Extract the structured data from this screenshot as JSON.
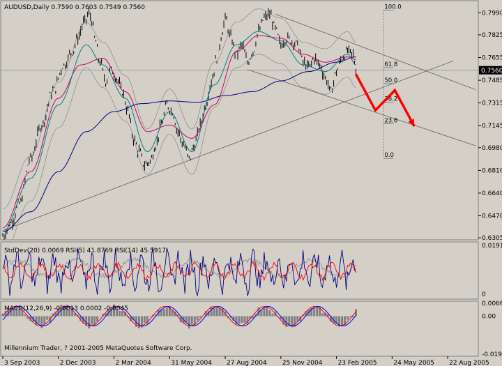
{
  "chart_data": {
    "type": "line",
    "symbol_header": "AUDUSD,Daily  0.7590 0.7603 0.7549 0.7560",
    "current_price": "0.7560",
    "price_axis": {
      "ticks": [
        0.799,
        0.7825,
        0.7655,
        0.7485,
        0.7315,
        0.7145,
        0.698,
        0.681,
        0.664,
        0.647,
        0.6305
      ],
      "tick_labels": [
        "0.7990",
        "0.7825",
        "0.7655",
        "0.7485",
        "0.7315",
        "0.7145",
        "0.6980",
        "0.6810",
        "0.6640",
        "0.6470",
        "0.6305"
      ],
      "ylim": [
        0.629,
        0.8065
      ]
    },
    "x_axis": {
      "tick_labels": [
        "3 Sep 2003",
        "2 Dec 2003",
        "2 Mar 2004",
        "31 May 2004",
        "27 Aug 2004",
        "25 Nov 2004",
        "23 Feb 2005",
        "24 May 2005",
        "22 Aug 2005"
      ]
    },
    "price_series": {
      "name": "AUDUSD",
      "anchors": [
        [
          0,
          0.632
        ],
        [
          3,
          0.642
        ],
        [
          6,
          0.656
        ],
        [
          10,
          0.69
        ],
        [
          14,
          0.715
        ],
        [
          18,
          0.74
        ],
        [
          22,
          0.76
        ],
        [
          25,
          0.77
        ],
        [
          27,
          0.78
        ],
        [
          29,
          0.791
        ],
        [
          31,
          0.798
        ],
        [
          32,
          0.794
        ],
        [
          33,
          0.78
        ],
        [
          35,
          0.762
        ],
        [
          37,
          0.748
        ],
        [
          39,
          0.756
        ],
        [
          41,
          0.75
        ],
        [
          43,
          0.74
        ],
        [
          45,
          0.725
        ],
        [
          47,
          0.705
        ],
        [
          49,
          0.695
        ],
        [
          51,
          0.685
        ],
        [
          53,
          0.688
        ],
        [
          55,
          0.7
        ],
        [
          57,
          0.715
        ],
        [
          59,
          0.73
        ],
        [
          61,
          0.725
        ],
        [
          63,
          0.71
        ],
        [
          65,
          0.7
        ],
        [
          67,
          0.69
        ],
        [
          69,
          0.7
        ],
        [
          71,
          0.715
        ],
        [
          73,
          0.73
        ],
        [
          75,
          0.748
        ],
        [
          77,
          0.765
        ],
        [
          79,
          0.785
        ],
        [
          80,
          0.795
        ],
        [
          82,
          0.78
        ],
        [
          84,
          0.768
        ],
        [
          86,
          0.775
        ],
        [
          88,
          0.762
        ],
        [
          90,
          0.77
        ],
        [
          92,
          0.785
        ],
        [
          94,
          0.795
        ],
        [
          96,
          0.798
        ],
        [
          98,
          0.787
        ],
        [
          100,
          0.775
        ],
        [
          102,
          0.78
        ],
        [
          104,
          0.778
        ],
        [
          106,
          0.775
        ],
        [
          108,
          0.762
        ],
        [
          110,
          0.758
        ],
        [
          112,
          0.765
        ],
        [
          114,
          0.76
        ],
        [
          116,
          0.75
        ],
        [
          118,
          0.74
        ],
        [
          120,
          0.755
        ],
        [
          122,
          0.765
        ],
        [
          124,
          0.77
        ],
        [
          126,
          0.768
        ],
        [
          127,
          0.756
        ]
      ]
    },
    "moving_averages": [
      {
        "color": "#000080",
        "anchors": [
          [
            0,
            0.635
          ],
          [
            10,
            0.65
          ],
          [
            20,
            0.68
          ],
          [
            30,
            0.71
          ],
          [
            40,
            0.725
          ],
          [
            50,
            0.731
          ],
          [
            60,
            0.733
          ],
          [
            70,
            0.732
          ],
          [
            80,
            0.737
          ],
          [
            90,
            0.74
          ],
          [
            100,
            0.748
          ],
          [
            110,
            0.755
          ],
          [
            120,
            0.762
          ],
          [
            127,
            0.766
          ]
        ]
      },
      {
        "color": "#cc0066",
        "anchors": [
          [
            0,
            0.638
          ],
          [
            10,
            0.68
          ],
          [
            20,
            0.735
          ],
          [
            28,
            0.76
          ],
          [
            36,
            0.765
          ],
          [
            44,
            0.74
          ],
          [
            52,
            0.71
          ],
          [
            60,
            0.715
          ],
          [
            68,
            0.705
          ],
          [
            76,
            0.73
          ],
          [
            84,
            0.77
          ],
          [
            92,
            0.782
          ],
          [
            100,
            0.78
          ],
          [
            108,
            0.768
          ],
          [
            116,
            0.762
          ],
          [
            124,
            0.766
          ],
          [
            127,
            0.764
          ]
        ]
      },
      {
        "color": "#008080",
        "anchors": [
          [
            0,
            0.635
          ],
          [
            10,
            0.675
          ],
          [
            20,
            0.73
          ],
          [
            30,
            0.775
          ],
          [
            36,
            0.76
          ],
          [
            44,
            0.735
          ],
          [
            52,
            0.695
          ],
          [
            60,
            0.725
          ],
          [
            68,
            0.695
          ],
          [
            76,
            0.745
          ],
          [
            84,
            0.775
          ],
          [
            92,
            0.785
          ],
          [
            100,
            0.778
          ],
          [
            108,
            0.76
          ],
          [
            116,
            0.755
          ],
          [
            124,
            0.768
          ],
          [
            127,
            0.76
          ]
        ]
      }
    ],
    "band_width": 0.017,
    "trendlines": [
      {
        "from": [
          0,
          0.636
        ],
        "to": [
          162,
          0.763
        ]
      },
      {
        "from": [
          98,
          0.798
        ],
        "to": [
          170,
          0.7415
        ]
      },
      {
        "from": [
          88,
          0.7565
        ],
        "to": [
          170,
          0.6995
        ]
      }
    ],
    "fibonacci": {
      "levels": [
        {
          "label": "100.0",
          "value": 0.801
        },
        {
          "label": "61.8",
          "value": 0.758
        },
        {
          "label": "50.0",
          "value": 0.746
        },
        {
          "label": "38.2",
          "value": 0.732
        },
        {
          "label": "23.6",
          "value": 0.716
        },
        {
          "label": "0.0",
          "value": 0.69
        }
      ]
    },
    "projection": {
      "color": "#ff0000",
      "points": [
        [
          127,
          0.753
        ],
        [
          134,
          0.726
        ],
        [
          141,
          0.741
        ],
        [
          148,
          0.714
        ]
      ]
    },
    "indicator1": {
      "header": "StdDev(20) 0.0069  RSI(5) 41.8769  RSI(14) 45.5917",
      "tick_labels": [
        "0.0191",
        "0"
      ],
      "range": [
        0,
        0.0191
      ]
    },
    "indicator2": {
      "header": "MACD(12,26,9) -0.0013 0.0002 -0.0045",
      "tick_labels": [
        "0.0066",
        "0.00",
        "-0.0194"
      ],
      "range": [
        -0.0194,
        0.0066
      ]
    },
    "copyright": "Millennium Trader, ? 2001-2005 MetaQuotes Software Corp."
  }
}
